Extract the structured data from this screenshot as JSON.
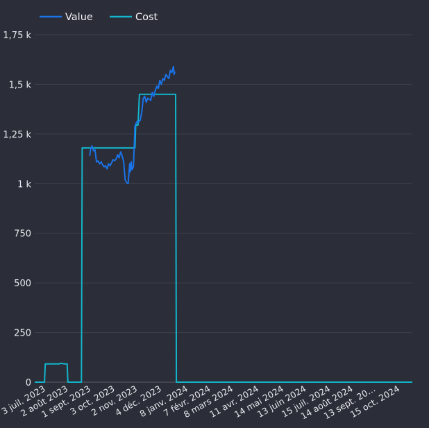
{
  "chart_data": {
    "type": "line",
    "legend": {
      "placement": "top-left"
    },
    "grid": true,
    "colors": {
      "background": "#2b2d38",
      "grid": "#3f424e",
      "axis": "#5a5d69",
      "text": "#e9ebf0"
    },
    "y_ticks": [
      "0",
      "250",
      "500",
      "750",
      "1 k",
      "1,25 k",
      "1,5 k",
      "1,75 k"
    ],
    "y_tick_values": [
      0,
      250,
      500,
      750,
      1000,
      1250,
      1500,
      1750
    ],
    "ylim": [
      0,
      1800
    ],
    "x_ticks": [
      "3 juil. 2023",
      "2 août 2023",
      "1 sept. 2023",
      "3 oct. 2023",
      "2 nov. 2023",
      "4 déc. 2023",
      "8 janv. 2024",
      "7 févr. 2024",
      "8 mars 2024",
      "11 avr. 2024",
      "14 mai 2024",
      "13 juin 2024",
      "15 juil. 2024",
      "14 août 2024",
      "13 sept. 20…",
      "15 oct. 2024"
    ],
    "x_tick_dates": [
      "2023-07-03",
      "2023-08-02",
      "2023-09-01",
      "2023-10-03",
      "2023-11-02",
      "2023-12-04",
      "2024-01-08",
      "2024-02-07",
      "2024-03-08",
      "2024-04-11",
      "2024-05-14",
      "2024-06-13",
      "2024-07-15",
      "2024-08-14",
      "2024-09-13",
      "2024-10-15"
    ],
    "xlim": [
      "2023-06-20",
      "2024-11-02"
    ],
    "series": [
      {
        "name": "Value",
        "color": "#1a73e8",
        "x": [
          "2023-09-01",
          "2023-09-02",
          "2023-09-04",
          "2023-09-06",
          "2023-09-08",
          "2023-09-10",
          "2023-09-12",
          "2023-09-14",
          "2023-09-16",
          "2023-09-18",
          "2023-09-20",
          "2023-09-22",
          "2023-09-24",
          "2023-09-26",
          "2023-09-28",
          "2023-09-30",
          "2023-10-02",
          "2023-10-04",
          "2023-10-06",
          "2023-10-08",
          "2023-10-10",
          "2023-10-12",
          "2023-10-14",
          "2023-10-16",
          "2023-10-18",
          "2023-10-20",
          "2023-10-22",
          "2023-10-24",
          "2023-10-25",
          "2023-10-26",
          "2023-10-27",
          "2023-10-29",
          "2023-10-31",
          "2023-11-01",
          "2023-11-03",
          "2023-11-05",
          "2023-11-07",
          "2023-11-09",
          "2023-11-11",
          "2023-11-13",
          "2023-11-15",
          "2023-11-17",
          "2023-11-19",
          "2023-11-21",
          "2023-11-23",
          "2023-11-25",
          "2023-11-27",
          "2023-11-29",
          "2023-12-01",
          "2023-12-03",
          "2023-12-05",
          "2023-12-07",
          "2023-12-09",
          "2023-12-11",
          "2023-12-13",
          "2023-12-15",
          "2023-12-17",
          "2023-12-19",
          "2023-12-21",
          "2023-12-22",
          "2023-12-23"
        ],
        "values": [
          1140,
          1175,
          1190,
          1165,
          1170,
          1110,
          1115,
          1100,
          1110,
          1095,
          1085,
          1090,
          1075,
          1100,
          1090,
          1105,
          1120,
          1115,
          1125,
          1145,
          1130,
          1160,
          1140,
          1110,
          1020,
          1005,
          1000,
          1100,
          1060,
          1110,
          1070,
          1085,
          1290,
          1300,
          1315,
          1310,
          1320,
          1360,
          1430,
          1440,
          1410,
          1430,
          1425,
          1420,
          1460,
          1440,
          1470,
          1490,
          1480,
          1520,
          1500,
          1530,
          1520,
          1550,
          1540,
          1530,
          1570,
          1560,
          1590,
          1550,
          1565
        ]
      },
      {
        "name": "Cost",
        "color": "#12b5cb",
        "x": [
          "2023-06-20",
          "2023-07-03",
          "2023-07-04",
          "2023-07-05",
          "2023-07-23",
          "2023-07-24",
          "2023-07-30",
          "2023-08-01",
          "2023-08-02",
          "2023-08-03",
          "2023-08-19",
          "2023-08-21",
          "2023-08-22",
          "2023-08-23",
          "2023-10-31",
          "2023-11-01",
          "2023-11-03",
          "2023-11-04",
          "2023-11-06",
          "2023-11-07",
          "2023-12-23",
          "2023-12-24",
          "2023-12-25",
          "2024-11-02"
        ],
        "values": [
          0,
          0,
          92,
          92,
          92,
          95,
          92,
          92,
          92,
          0,
          0,
          0,
          1180,
          1180,
          1180,
          1295,
          1295,
          1295,
          1450,
          1450,
          1450,
          1450,
          0,
          0
        ]
      }
    ]
  }
}
